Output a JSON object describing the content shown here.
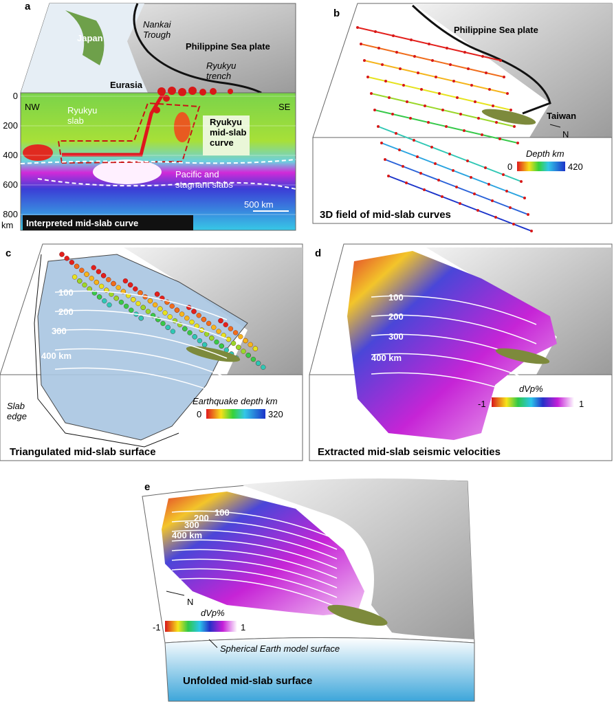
{
  "panels": [
    {
      "label": "a",
      "caption": "Interpreted mid-slab curve",
      "map_labels": [
        "Japan",
        [
          "Nankai",
          "Trough"
        ],
        "Philippine Sea plate",
        [
          "Ryukyu",
          "trench"
        ],
        "Eurasia"
      ],
      "section_labels": [
        "NW",
        "SE",
        [
          "Ryukyu",
          "slab"
        ],
        [
          "Ryukyu",
          "mid-slab",
          "curve"
        ],
        [
          "Pacific and",
          "stagnant slabs"
        ],
        "500 km"
      ],
      "depth_ticks": [
        0,
        200,
        400,
        600,
        800
      ],
      "depth_unit": "km"
    },
    {
      "label": "b",
      "caption": "3D field of mid-slab curves",
      "map_labels": [
        "Philippine Sea plate",
        "Taiwan",
        "N"
      ],
      "colorbar": {
        "title": "Depth km",
        "min": "0",
        "max": "420"
      }
    },
    {
      "label": "c",
      "caption": "Triangulated mid-slab surface",
      "contours": [
        "100",
        "200",
        "300",
        "400 km"
      ],
      "note": [
        "Slab",
        "edge"
      ],
      "colorbar": {
        "title": "Earthquake depth km",
        "min": "0",
        "max": "320"
      }
    },
    {
      "label": "d",
      "caption": "Extracted mid-slab seismic velocities",
      "contours": [
        "100",
        "200",
        "300",
        "400 km"
      ],
      "colorbar": {
        "title": "dVp%",
        "min": "-1",
        "max": "1"
      }
    },
    {
      "label": "e",
      "caption": "Unfolded mid-slab surface",
      "contours": [
        "100",
        "200",
        "300",
        "400 km"
      ],
      "north": "N",
      "note": "Spherical Earth model surface",
      "colorbar": {
        "title": "dVp%",
        "min": "-1",
        "max": "1"
      }
    }
  ]
}
